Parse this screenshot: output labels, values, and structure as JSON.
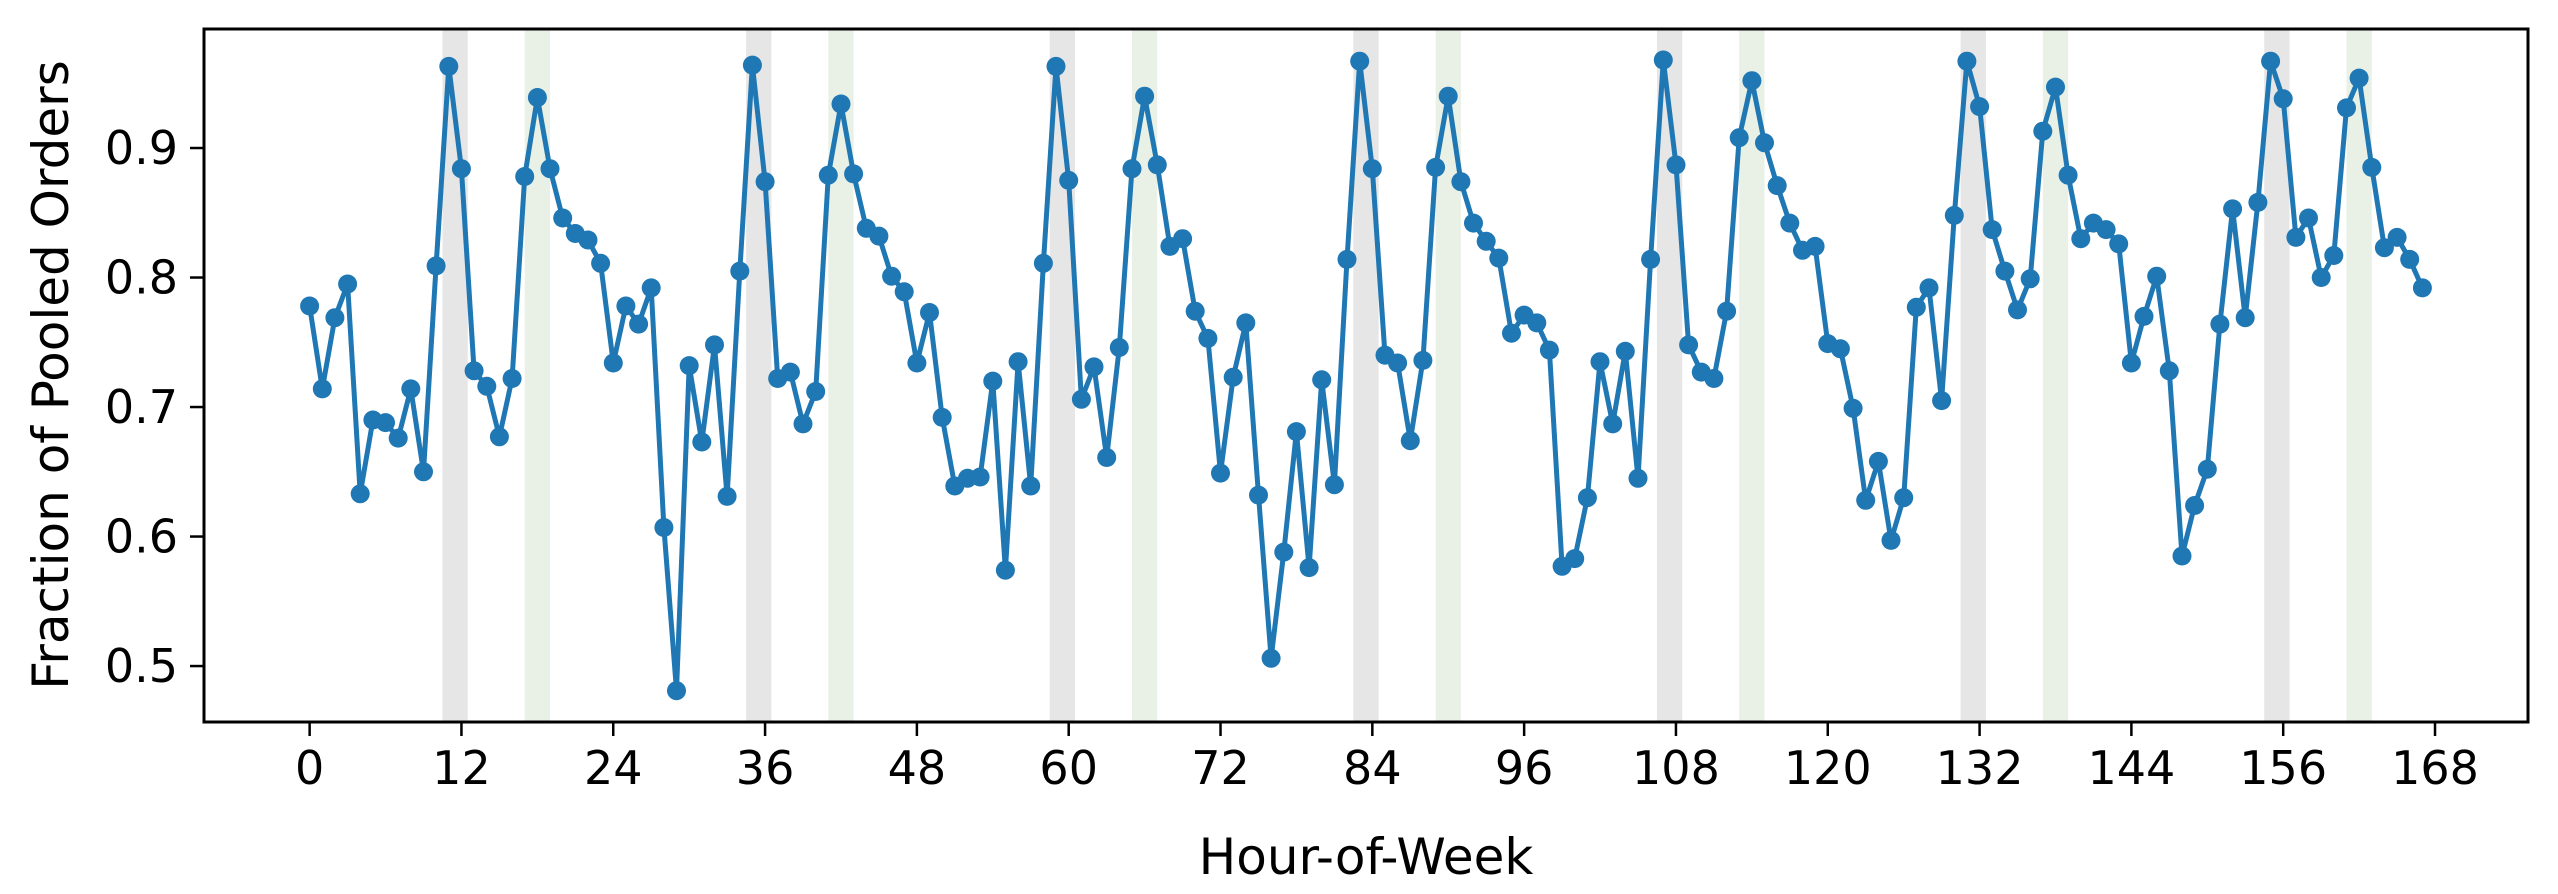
{
  "chart_data": {
    "type": "line",
    "title": "",
    "xlabel": "Hour-of-Week",
    "ylabel": "Fraction of Pooled Orders",
    "legend": null,
    "grid": false,
    "line_color": "#1f77b4",
    "marker": "circle",
    "x_ticks": [
      0,
      12,
      24,
      36,
      48,
      60,
      72,
      84,
      96,
      108,
      120,
      132,
      144,
      156,
      168
    ],
    "y_ticks": [
      0.5,
      0.6,
      0.7,
      0.8,
      0.9
    ],
    "xlim": [
      -8.35,
      175.35
    ],
    "ylim": [
      0.4568,
      0.9919
    ],
    "shaded_bands": [
      {
        "name": "gray-band",
        "color": "#e6e6e6",
        "spans": [
          [
            10.5,
            12.5
          ],
          [
            34.5,
            36.5
          ],
          [
            58.5,
            60.5
          ],
          [
            82.5,
            84.5
          ],
          [
            106.5,
            108.5
          ],
          [
            130.5,
            132.5
          ],
          [
            154.5,
            156.5
          ]
        ]
      },
      {
        "name": "green-band",
        "color": "#e9f1e6",
        "spans": [
          [
            17,
            19
          ],
          [
            41,
            43
          ],
          [
            65,
            67
          ],
          [
            89,
            91
          ],
          [
            113,
            115
          ],
          [
            137,
            139
          ],
          [
            161,
            163
          ]
        ]
      }
    ],
    "x": [
      0,
      1,
      2,
      3,
      4,
      5,
      6,
      7,
      8,
      9,
      10,
      11,
      12,
      13,
      14,
      15,
      16,
      17,
      18,
      19,
      20,
      21,
      22,
      23,
      24,
      25,
      26,
      27,
      28,
      29,
      30,
      31,
      32,
      33,
      34,
      35,
      36,
      37,
      38,
      39,
      40,
      41,
      42,
      43,
      44,
      45,
      46,
      47,
      48,
      49,
      50,
      51,
      52,
      53,
      54,
      55,
      56,
      57,
      58,
      59,
      60,
      61,
      62,
      63,
      64,
      65,
      66,
      67,
      68,
      69,
      70,
      71,
      72,
      73,
      74,
      75,
      76,
      77,
      78,
      79,
      80,
      81,
      82,
      83,
      84,
      85,
      86,
      87,
      88,
      89,
      90,
      91,
      92,
      93,
      94,
      95,
      96,
      97,
      98,
      99,
      100,
      101,
      102,
      103,
      104,
      105,
      106,
      107,
      108,
      109,
      110,
      111,
      112,
      113,
      114,
      115,
      116,
      117,
      118,
      119,
      120,
      121,
      122,
      123,
      124,
      125,
      126,
      127,
      128,
      129,
      130,
      131,
      132,
      133,
      134,
      135,
      136,
      137,
      138,
      139,
      140,
      141,
      142,
      143,
      144,
      145,
      146,
      147,
      148,
      149,
      150,
      151,
      152,
      153,
      154,
      155,
      156,
      157,
      158,
      159,
      160,
      161,
      162,
      163,
      164,
      165,
      166,
      167
    ],
    "values": [
      0.778,
      0.714,
      0.769,
      0.795,
      0.633,
      0.69,
      0.688,
      0.676,
      0.714,
      0.65,
      0.809,
      0.963,
      0.884,
      0.728,
      0.716,
      0.677,
      0.722,
      0.878,
      0.939,
      0.884,
      0.846,
      0.834,
      0.829,
      0.811,
      0.734,
      0.778,
      0.764,
      0.792,
      0.607,
      0.481,
      0.732,
      0.673,
      0.748,
      0.631,
      0.805,
      0.964,
      0.874,
      0.722,
      0.727,
      0.687,
      0.712,
      0.879,
      0.934,
      0.88,
      0.838,
      0.832,
      0.801,
      0.789,
      0.734,
      0.773,
      0.692,
      0.639,
      0.645,
      0.646,
      0.72,
      0.574,
      0.735,
      0.639,
      0.811,
      0.963,
      0.875,
      0.706,
      0.731,
      0.661,
      0.746,
      0.884,
      0.94,
      0.887,
      0.824,
      0.83,
      0.774,
      0.753,
      0.649,
      0.723,
      0.765,
      0.632,
      0.506,
      0.588,
      0.681,
      0.576,
      0.721,
      0.64,
      0.814,
      0.967,
      0.884,
      0.74,
      0.734,
      0.674,
      0.736,
      0.885,
      0.94,
      0.874,
      0.842,
      0.828,
      0.815,
      0.757,
      0.771,
      0.765,
      0.744,
      0.577,
      0.583,
      0.63,
      0.735,
      0.687,
      0.743,
      0.645,
      0.814,
      0.968,
      0.887,
      0.748,
      0.727,
      0.722,
      0.774,
      0.908,
      0.952,
      0.904,
      0.871,
      0.842,
      0.821,
      0.824,
      0.749,
      0.745,
      0.699,
      0.628,
      0.658,
      0.597,
      0.63,
      0.777,
      0.792,
      0.705,
      0.848,
      0.967,
      0.932,
      0.837,
      0.805,
      0.775,
      0.799,
      0.913,
      0.947,
      0.879,
      0.83,
      0.842,
      0.837,
      0.826,
      0.734,
      0.77,
      0.801,
      0.728,
      0.585,
      0.624,
      0.652,
      0.764,
      0.853,
      0.769,
      0.858,
      0.967,
      0.938,
      0.831,
      0.846,
      0.8,
      0.817,
      0.931,
      0.954,
      0.885,
      0.823,
      0.831,
      0.814,
      0.792
    ]
  },
  "layout_colors": {
    "spine": "#000000",
    "background": "#ffffff"
  }
}
